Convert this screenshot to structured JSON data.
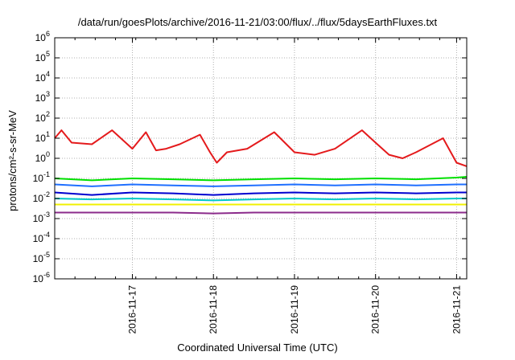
{
  "chart_data": {
    "type": "line",
    "title": "/data/run/goesPlots/archive/2016-11-21/03:00/flux/../flux/5daysEarthFluxes.txt",
    "xlabel": "Coordinated Universal Time (UTC)",
    "ylabel": "protons/cm²-s-sr-MeV",
    "y_scale": "log",
    "ylim": [
      1e-06,
      1000000.0
    ],
    "xlim": [
      "2016-11-16 01:00",
      "2016-11-21 03:00"
    ],
    "x_tick_labels": [
      "2016-11-17",
      "2016-11-18",
      "2016-11-19",
      "2016-11-20",
      "2016-11-21"
    ],
    "y_tick_labels": [
      {
        "base": "10",
        "exp": "-6"
      },
      {
        "base": "10",
        "exp": "-5"
      },
      {
        "base": "10",
        "exp": "-4"
      },
      {
        "base": "10",
        "exp": "-3"
      },
      {
        "base": "10",
        "exp": "-2"
      },
      {
        "base": "10",
        "exp": "-1"
      },
      {
        "base": "10",
        "exp": "0"
      },
      {
        "base": "10",
        "exp": "1"
      },
      {
        "base": "10",
        "exp": "2"
      },
      {
        "base": "10",
        "exp": "3"
      },
      {
        "base": "10",
        "exp": "4"
      },
      {
        "base": "10",
        "exp": "5"
      },
      {
        "base": "10",
        "exp": "6"
      }
    ],
    "grid": true,
    "series": [
      {
        "color": "#e41a1c",
        "x": [
          "2016-11-16 01:00",
          "2016-11-16 03:00",
          "2016-11-16 06:00",
          "2016-11-16 12:00",
          "2016-11-16 18:00",
          "2016-11-17 00:00",
          "2016-11-17 04:00",
          "2016-11-17 07:00",
          "2016-11-17 10:00",
          "2016-11-17 14:00",
          "2016-11-17 20:00",
          "2016-11-17 23:00",
          "2016-11-18 01:00",
          "2016-11-18 04:00",
          "2016-11-18 10:00",
          "2016-11-18 18:00",
          "2016-11-19 00:00",
          "2016-11-19 06:00",
          "2016-11-19 12:00",
          "2016-11-19 20:00",
          "2016-11-20 00:00",
          "2016-11-20 04:00",
          "2016-11-20 08:00",
          "2016-11-20 12:00",
          "2016-11-20 20:00",
          "2016-11-21 00:00",
          "2016-11-21 03:00"
        ],
        "values": [
          10,
          25,
          6,
          5,
          25,
          3,
          20,
          2.5,
          3,
          5,
          15,
          2,
          0.6,
          2,
          3,
          20,
          2,
          1.5,
          3,
          25,
          6,
          1.5,
          1,
          2,
          10,
          0.6,
          0.4
        ]
      },
      {
        "color": "#00e000",
        "x": [
          "2016-11-16 01:00",
          "2016-11-16 12:00",
          "2016-11-17 00:00",
          "2016-11-17 12:00",
          "2016-11-18 00:00",
          "2016-11-18 12:00",
          "2016-11-19 00:00",
          "2016-11-19 12:00",
          "2016-11-20 00:00",
          "2016-11-20 12:00",
          "2016-11-21 00:00",
          "2016-11-21 03:00"
        ],
        "values": [
          0.1,
          0.08,
          0.1,
          0.09,
          0.08,
          0.09,
          0.1,
          0.09,
          0.1,
          0.09,
          0.11,
          0.12
        ]
      },
      {
        "color": "#1f6fff",
        "x": [
          "2016-11-16 01:00",
          "2016-11-16 12:00",
          "2016-11-17 00:00",
          "2016-11-17 12:00",
          "2016-11-18 00:00",
          "2016-11-18 12:00",
          "2016-11-19 00:00",
          "2016-11-19 12:00",
          "2016-11-20 00:00",
          "2016-11-20 12:00",
          "2016-11-21 00:00",
          "2016-11-21 03:00"
        ],
        "values": [
          0.05,
          0.04,
          0.05,
          0.045,
          0.04,
          0.045,
          0.05,
          0.045,
          0.05,
          0.045,
          0.05,
          0.05
        ]
      },
      {
        "color": "#0000d0",
        "x": [
          "2016-11-16 01:00",
          "2016-11-16 12:00",
          "2016-11-17 00:00",
          "2016-11-17 12:00",
          "2016-11-18 00:00",
          "2016-11-18 12:00",
          "2016-11-19 00:00",
          "2016-11-19 12:00",
          "2016-11-20 00:00",
          "2016-11-20 12:00",
          "2016-11-21 00:00",
          "2016-11-21 03:00"
        ],
        "values": [
          0.02,
          0.015,
          0.02,
          0.018,
          0.015,
          0.018,
          0.02,
          0.018,
          0.02,
          0.018,
          0.02,
          0.02
        ]
      },
      {
        "color": "#00c8c8",
        "x": [
          "2016-11-16 01:00",
          "2016-11-16 12:00",
          "2016-11-17 00:00",
          "2016-11-17 12:00",
          "2016-11-18 00:00",
          "2016-11-18 12:00",
          "2016-11-19 00:00",
          "2016-11-19 12:00",
          "2016-11-20 00:00",
          "2016-11-20 12:00",
          "2016-11-21 00:00",
          "2016-11-21 03:00"
        ],
        "values": [
          0.01,
          0.009,
          0.01,
          0.009,
          0.008,
          0.009,
          0.01,
          0.009,
          0.01,
          0.009,
          0.01,
          0.01
        ]
      },
      {
        "color": "#f0f000",
        "x": [
          "2016-11-16 01:00",
          "2016-11-16 12:00",
          "2016-11-17 00:00",
          "2016-11-17 12:00",
          "2016-11-18 00:00",
          "2016-11-18 12:00",
          "2016-11-19 00:00",
          "2016-11-19 12:00",
          "2016-11-20 00:00",
          "2016-11-20 12:00",
          "2016-11-21 00:00",
          "2016-11-21 03:00"
        ],
        "values": [
          0.005,
          0.005,
          0.005,
          0.005,
          0.005,
          0.005,
          0.005,
          0.005,
          0.005,
          0.005,
          0.005,
          0.005
        ]
      },
      {
        "color": "#8b2b8b",
        "x": [
          "2016-11-16 01:00",
          "2016-11-16 12:00",
          "2016-11-17 00:00",
          "2016-11-17 12:00",
          "2016-11-18 00:00",
          "2016-11-18 12:00",
          "2016-11-19 00:00",
          "2016-11-19 12:00",
          "2016-11-20 00:00",
          "2016-11-20 12:00",
          "2016-11-21 00:00",
          "2016-11-21 03:00"
        ],
        "values": [
          0.002,
          0.002,
          0.002,
          0.002,
          0.0018,
          0.002,
          0.002,
          0.002,
          0.002,
          0.002,
          0.002,
          0.002
        ]
      }
    ]
  }
}
